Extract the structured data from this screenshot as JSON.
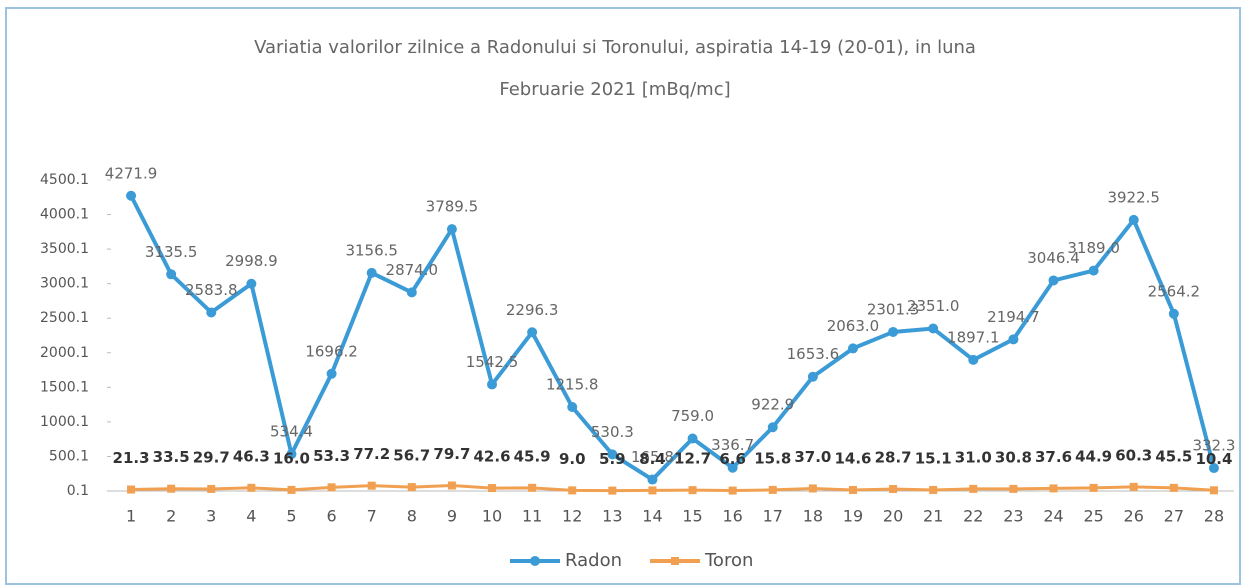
{
  "chart_data": {
    "type": "line",
    "title": [
      "Variatia valorilor zilnice a Radonului si Toronului, aspiratia 14-19 (20-01),  in luna",
      "Februarie 2021 [mBq/mc]"
    ],
    "categories": [
      "1",
      "2",
      "3",
      "4",
      "5",
      "6",
      "7",
      "8",
      "9",
      "10",
      "11",
      "12",
      "13",
      "14",
      "15",
      "16",
      "17",
      "18",
      "19",
      "20",
      "21",
      "22",
      "23",
      "24",
      "25",
      "26",
      "27",
      "28"
    ],
    "series": [
      {
        "name": "Radon",
        "color": "#3b9bd6",
        "values": [
          4271.9,
          3135.5,
          2583.8,
          2998.9,
          534.4,
          1696.2,
          3156.5,
          2874.0,
          3789.5,
          1542.5,
          2296.3,
          1215.8,
          530.3,
          165.8,
          759.0,
          336.7,
          922.9,
          1653.6,
          2063.0,
          2301.3,
          2351.0,
          1897.1,
          2194.7,
          3046.4,
          3189.0,
          3922.5,
          2564.2,
          332.3
        ],
        "value_labels": [
          "4271.9",
          "3135.5",
          "2583.8",
          "2998.9",
          "534.4",
          "1696.2",
          "3156.5",
          "2874.0",
          "3789.5",
          "1542.5",
          "2296.3",
          "1215.8",
          "530.3",
          "165.8",
          "759.0",
          "336.7",
          "922.9",
          "1653.6",
          "2063.0",
          "2301.3",
          "2351.0",
          "1897.1",
          "2194.7",
          "3046.4",
          "3189.0",
          "3922.5",
          "2564.2",
          "332.3"
        ]
      },
      {
        "name": "Toron",
        "color": "#f0a050",
        "values": [
          21.3,
          33.5,
          29.7,
          46.3,
          16.0,
          53.3,
          77.2,
          56.7,
          79.7,
          42.6,
          45.9,
          9.0,
          5.9,
          8.4,
          12.7,
          6.6,
          15.8,
          37.0,
          14.6,
          28.7,
          15.1,
          31.0,
          30.8,
          37.6,
          44.9,
          60.3,
          45.5,
          10.4
        ],
        "value_labels": [
          "21.3",
          "33.5",
          "29.7",
          "46.3",
          "16.0",
          "53.3",
          "77.2",
          "56.7",
          "79.7",
          "42.6",
          "45.9",
          "9.0",
          "5.9",
          "8.4",
          "12.7",
          "6.6",
          "15.8",
          "37.0",
          "14.6",
          "28.7",
          "15.1",
          "31.0",
          "30.8",
          "37.6",
          "44.9",
          "60.3",
          "45.5",
          "10.4"
        ]
      }
    ],
    "ylim": [
      0.1,
      4500.1
    ],
    "yticks": [
      0.1,
      500.1,
      1000.1,
      1500.1,
      2000.1,
      2500.1,
      3000.1,
      3500.1,
      4000.1,
      4500.1
    ],
    "legend": "bottom"
  }
}
